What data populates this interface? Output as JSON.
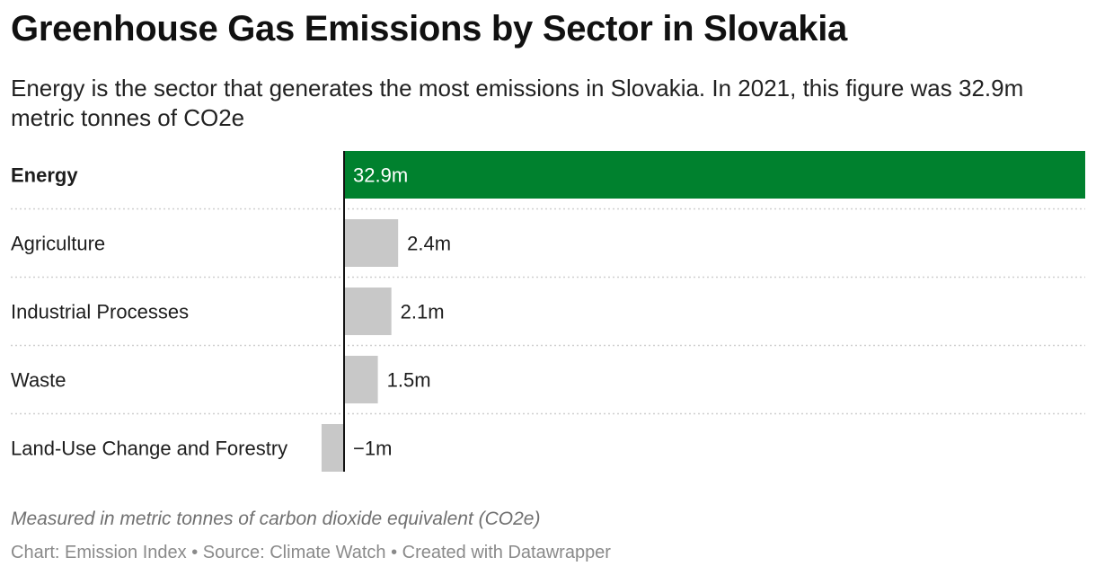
{
  "title": "Greenhouse Gas Emissions by Sector in Slovakia",
  "subtitle": "Energy is the sector that generates the most emissions in Slovakia. In 2021, this figure was 32.9m metric tonnes of CO2e",
  "note": "Measured in metric tonnes of carbon dioxide equivalent (CO2e)",
  "credit": "Chart: Emission Index • Source: Climate Watch • Created with Datawrapper",
  "colors": {
    "highlight": "#00812e",
    "default_bar": "#c8c8c8",
    "axis": "#111111",
    "separator": "#cfcfcf"
  },
  "chart_data": {
    "type": "bar",
    "orientation": "horizontal",
    "categories": [
      "Energy",
      "Agriculture",
      "Industrial Processes",
      "Waste",
      "Land-Use Change and Forestry"
    ],
    "values": [
      32.9,
      2.4,
      2.1,
      1.5,
      -1
    ],
    "labels": [
      "32.9m",
      "2.4m",
      "2.1m",
      "1.5m",
      "−1m"
    ],
    "highlighted": [
      "Energy"
    ],
    "units": "metric tonnes of CO2e (millions)",
    "xlim": [
      -1,
      32.9
    ]
  }
}
